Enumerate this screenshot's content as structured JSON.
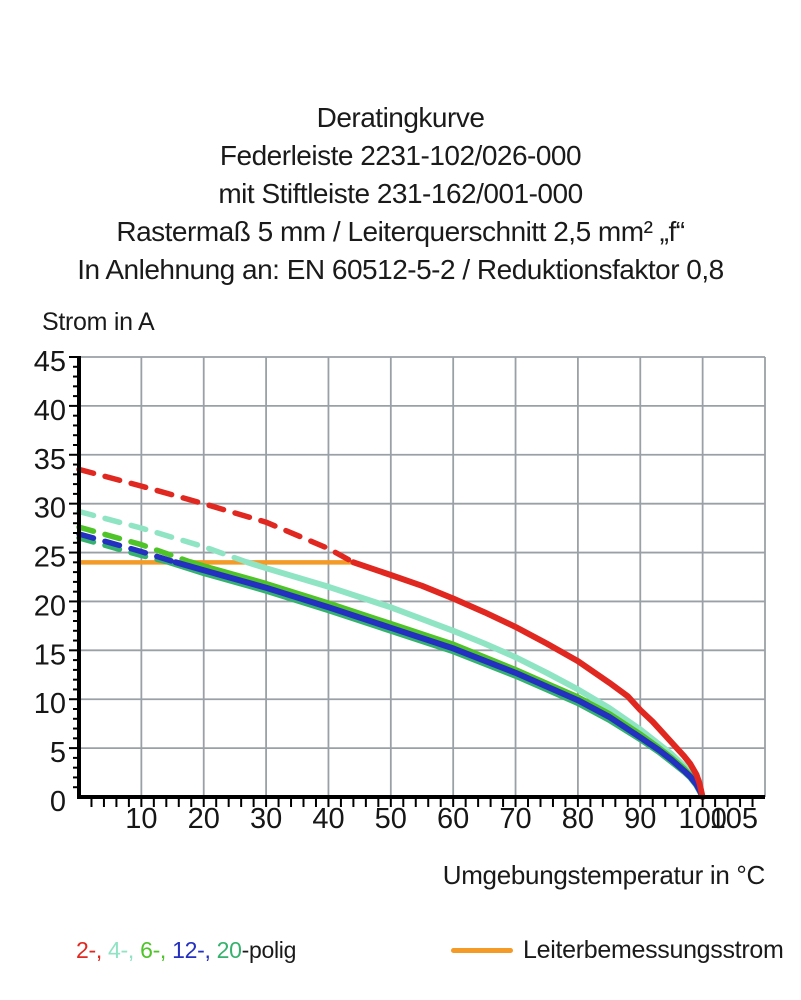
{
  "title": {
    "line1": "Deratingkurve",
    "line2": "Federleiste 2231-102/026-000",
    "line3": "mit Stiftleiste 231-162/001-000",
    "line4": "Rastermaß 5 mm / Leiterquerschnitt 2,5 mm² „f“",
    "line5": "In Anlehnung an: EN 60512-5-2 / Reduktionsfaktor 0,8"
  },
  "chart_data": {
    "type": "line",
    "title": "Deratingkurve",
    "xlabel": "Umgebungstemperatur in °C",
    "ylabel": "Strom in A",
    "xlim": [
      0,
      110
    ],
    "ylim": [
      0,
      45
    ],
    "x_tick_labels": [
      10,
      20,
      30,
      40,
      50,
      60,
      70,
      80,
      90,
      100,
      105
    ],
    "y_tick_labels": [
      0,
      5,
      10,
      15,
      20,
      25,
      30,
      35,
      40,
      45
    ],
    "x_gridlines": [
      10,
      20,
      30,
      40,
      50,
      60,
      70,
      80,
      90,
      100,
      110
    ],
    "y_gridlines": [
      5,
      10,
      15,
      20,
      25,
      30,
      35,
      40,
      45
    ],
    "x_minor_tick_step": 2,
    "y_minor_tick_step": 1,
    "grid_on": true,
    "grid_color": "#9aa1a6",
    "axis_color": "#000000",
    "rated_line": {
      "label": "Leiterbemessungsstrom",
      "color": "#f49a26",
      "y": 24,
      "x_start": 0,
      "x_end": 44
    },
    "series": [
      {
        "name": "20-polig",
        "color": "#35b26e",
        "dash_until_x": 14.5,
        "points": [
          [
            0,
            26.5
          ],
          [
            10,
            24.7
          ],
          [
            14.5,
            24
          ],
          [
            20,
            22.9
          ],
          [
            30,
            21.1
          ],
          [
            40,
            19.1
          ],
          [
            50,
            17
          ],
          [
            60,
            14.9
          ],
          [
            70,
            12.4
          ],
          [
            75,
            11
          ],
          [
            80,
            9.6
          ],
          [
            85,
            7.9
          ],
          [
            90,
            5.9
          ],
          [
            93,
            4.6
          ],
          [
            95,
            3.6
          ],
          [
            97,
            2.6
          ],
          [
            98,
            2
          ],
          [
            99,
            1.2
          ],
          [
            99.6,
            0.5
          ],
          [
            100,
            0
          ]
        ]
      },
      {
        "name": "4-polig",
        "color": "#8fe4c4",
        "dash_until_x": 27,
        "points": [
          [
            0,
            29.2
          ],
          [
            10,
            27.5
          ],
          [
            20,
            25.6
          ],
          [
            27,
            24
          ],
          [
            30,
            23.4
          ],
          [
            40,
            21.5
          ],
          [
            50,
            19.4
          ],
          [
            60,
            17
          ],
          [
            65,
            15.7
          ],
          [
            70,
            14.3
          ],
          [
            75,
            12.7
          ],
          [
            80,
            11
          ],
          [
            85,
            9.1
          ],
          [
            90,
            6.9
          ],
          [
            93,
            5.4
          ],
          [
            95,
            4.4
          ],
          [
            97,
            3.2
          ],
          [
            98,
            2.5
          ],
          [
            99,
            1.6
          ],
          [
            99.6,
            0.8
          ],
          [
            100,
            0
          ]
        ]
      },
      {
        "name": "6-polig",
        "color": "#4ec428",
        "dash_until_x": 18,
        "points": [
          [
            0,
            27.6
          ],
          [
            10,
            25.8
          ],
          [
            18,
            24
          ],
          [
            20,
            23.6
          ],
          [
            30,
            21.8
          ],
          [
            40,
            19.8
          ],
          [
            50,
            17.7
          ],
          [
            60,
            15.6
          ],
          [
            70,
            13
          ],
          [
            75,
            11.6
          ],
          [
            80,
            10.2
          ],
          [
            85,
            8.5
          ],
          [
            90,
            6.4
          ],
          [
            93,
            5
          ],
          [
            95,
            4
          ],
          [
            97,
            2.9
          ],
          [
            98,
            2.2
          ],
          [
            99,
            1.4
          ],
          [
            99.6,
            0.7
          ],
          [
            100,
            0
          ]
        ]
      },
      {
        "name": "12-polig",
        "color": "#2330c0",
        "dash_until_x": 15.5,
        "points": [
          [
            0,
            26.9
          ],
          [
            10,
            25.1
          ],
          [
            15.5,
            24
          ],
          [
            20,
            23.2
          ],
          [
            30,
            21.4
          ],
          [
            40,
            19.4
          ],
          [
            50,
            17.3
          ],
          [
            60,
            15.2
          ],
          [
            70,
            12.7
          ],
          [
            75,
            11.3
          ],
          [
            80,
            9.9
          ],
          [
            85,
            8.2
          ],
          [
            90,
            6.1
          ],
          [
            93,
            4.8
          ],
          [
            95,
            3.8
          ],
          [
            97,
            2.7
          ],
          [
            98,
            2.1
          ],
          [
            99,
            1.3
          ],
          [
            99.6,
            0.6
          ],
          [
            100,
            0
          ]
        ]
      },
      {
        "name": "2-polig",
        "color": "#e02820",
        "dash_until_x": 44,
        "points": [
          [
            0,
            33.5
          ],
          [
            10,
            31.8
          ],
          [
            20,
            30
          ],
          [
            30,
            28.1
          ],
          [
            40,
            25.4
          ],
          [
            44,
            24
          ],
          [
            50,
            22.7
          ],
          [
            55,
            21.6
          ],
          [
            60,
            20.3
          ],
          [
            65,
            18.9
          ],
          [
            70,
            17.4
          ],
          [
            75,
            15.7
          ],
          [
            80,
            13.9
          ],
          [
            85,
            11.7
          ],
          [
            88,
            10.3
          ],
          [
            90,
            8.9
          ],
          [
            92,
            7.7
          ],
          [
            94,
            6.3
          ],
          [
            96,
            4.9
          ],
          [
            97,
            4.2
          ],
          [
            98,
            3.4
          ],
          [
            99,
            2.3
          ],
          [
            99.5,
            1.4
          ],
          [
            100,
            0
          ]
        ]
      }
    ],
    "legend_position": "bottom",
    "legend_label": "2-, 4-, 6-, 12-, 20-polig"
  },
  "legend": {
    "poles": [
      {
        "text": "2-,",
        "color": "#e02820"
      },
      {
        "text": " 4-,",
        "color": "#8fe4c4"
      },
      {
        "text": " 6-,",
        "color": "#4ec428"
      },
      {
        "text": " 12-,",
        "color": "#2330c0"
      },
      {
        "text": " 20",
        "color": "#35b26e"
      },
      {
        "text": "-polig",
        "color": "#1a1a1a"
      }
    ],
    "rated": {
      "label": "Leiterbemessungsstrom",
      "color": "#f49a26"
    }
  }
}
